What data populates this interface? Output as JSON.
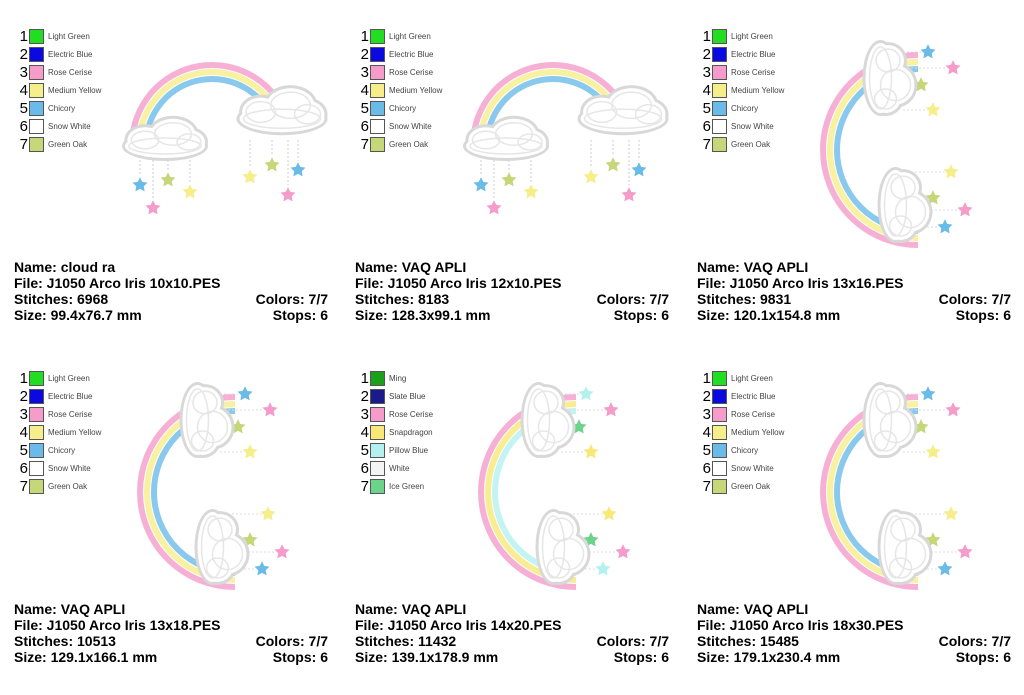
{
  "labels": {
    "name": "Name: ",
    "file": "File: ",
    "stitches": "Stitches: ",
    "size": "Size: ",
    "colors": "Colors: ",
    "stops": "Stops: "
  },
  "designs": [
    {
      "name": "cloud ra",
      "file": "J1050 Arco Iris 10x10.PES",
      "stitches": "6968",
      "size": "99.4x76.7 mm",
      "colors": "7/7",
      "stops": "6",
      "layout": "horizontal",
      "threads": [
        {
          "n": "1",
          "name": "Light Green",
          "color": "#22dd22"
        },
        {
          "n": "2",
          "name": "Electric Blue",
          "color": "#0a0ae0"
        },
        {
          "n": "3",
          "name": "Rose Cerise",
          "color": "#f59ccb"
        },
        {
          "n": "4",
          "name": "Medium Yellow",
          "color": "#f5ee8a"
        },
        {
          "n": "5",
          "name": "Chicory",
          "color": "#6bbbe8"
        },
        {
          "n": "6",
          "name": "Snow White",
          "color": "#ffffff"
        },
        {
          "n": "7",
          "name": "Green Oak",
          "color": "#c6d77a"
        }
      ]
    },
    {
      "name": "VAQ APLI",
      "file": "J1050 Arco Iris 12x10.PES",
      "stitches": "8183",
      "size": "128.3x99.1 mm",
      "colors": "7/7",
      "stops": "6",
      "layout": "horizontal",
      "threads": [
        {
          "n": "1",
          "name": "Light Green",
          "color": "#22dd22"
        },
        {
          "n": "2",
          "name": "Electric Blue",
          "color": "#0a0ae0"
        },
        {
          "n": "3",
          "name": "Rose Cerise",
          "color": "#f59ccb"
        },
        {
          "n": "4",
          "name": "Medium Yellow",
          "color": "#f5ee8a"
        },
        {
          "n": "5",
          "name": "Chicory",
          "color": "#6bbbe8"
        },
        {
          "n": "6",
          "name": "Snow White",
          "color": "#ffffff"
        },
        {
          "n": "7",
          "name": "Green Oak",
          "color": "#c6d77a"
        }
      ]
    },
    {
      "name": "VAQ APLI",
      "file": "J1050 Arco Iris 13x16.PES",
      "stitches": "9831",
      "size": "120.1x154.8 mm",
      "colors": "7/7",
      "stops": "6",
      "layout": "vertical",
      "threads": [
        {
          "n": "1",
          "name": "Light Green",
          "color": "#22dd22"
        },
        {
          "n": "2",
          "name": "Electric Blue",
          "color": "#0a0ae0"
        },
        {
          "n": "3",
          "name": "Rose Cerise",
          "color": "#f59ccb"
        },
        {
          "n": "4",
          "name": "Medium Yellow",
          "color": "#f5ee8a"
        },
        {
          "n": "5",
          "name": "Chicory",
          "color": "#6bbbe8"
        },
        {
          "n": "6",
          "name": "Snow White",
          "color": "#ffffff"
        },
        {
          "n": "7",
          "name": "Green Oak",
          "color": "#c6d77a"
        }
      ]
    },
    {
      "name": "VAQ APLI",
      "file": "J1050 Arco Iris 13x18.PES",
      "stitches": "10513",
      "size": "129.1x166.1 mm",
      "colors": "7/7",
      "stops": "6",
      "layout": "vertical",
      "threads": [
        {
          "n": "1",
          "name": "Light Green",
          "color": "#22dd22"
        },
        {
          "n": "2",
          "name": "Electric Blue",
          "color": "#0a0ae0"
        },
        {
          "n": "3",
          "name": "Rose Cerise",
          "color": "#f59ccb"
        },
        {
          "n": "4",
          "name": "Medium Yellow",
          "color": "#f5ee8a"
        },
        {
          "n": "5",
          "name": "Chicory",
          "color": "#6bbbe8"
        },
        {
          "n": "6",
          "name": "Snow White",
          "color": "#ffffff"
        },
        {
          "n": "7",
          "name": "Green Oak",
          "color": "#c6d77a"
        }
      ]
    },
    {
      "name": "VAQ APLI",
      "file": "J1050 Arco Iris 14x20.PES",
      "stitches": "11432",
      "size": "139.1x178.9 mm",
      "colors": "7/7",
      "stops": "6",
      "layout": "vertical",
      "threads": [
        {
          "n": "1",
          "name": "Ming",
          "color": "#1aa01a"
        },
        {
          "n": "2",
          "name": "Slate Blue",
          "color": "#1a1a8c"
        },
        {
          "n": "3",
          "name": "Rose Cerise",
          "color": "#f59ccb"
        },
        {
          "n": "4",
          "name": "Snapdragon",
          "color": "#f8e878"
        },
        {
          "n": "5",
          "name": "Pillow Blue",
          "color": "#b5f0f0"
        },
        {
          "n": "6",
          "name": "White",
          "color": "#f4f4f4"
        },
        {
          "n": "7",
          "name": "Ice Green",
          "color": "#6cd48a"
        }
      ]
    },
    {
      "name": "VAQ APLI",
      "file": "J1050 Arco Iris 18x30.PES",
      "stitches": "15485",
      "size": "179.1x230.4 mm",
      "colors": "7/7",
      "stops": "6",
      "layout": "vertical",
      "threads": [
        {
          "n": "1",
          "name": "Light Green",
          "color": "#22dd22"
        },
        {
          "n": "2",
          "name": "Electric Blue",
          "color": "#0a0ae0"
        },
        {
          "n": "3",
          "name": "Rose Cerise",
          "color": "#f59ccb"
        },
        {
          "n": "4",
          "name": "Medium Yellow",
          "color": "#f5ee8a"
        },
        {
          "n": "5",
          "name": "Chicory",
          "color": "#6bbbe8"
        },
        {
          "n": "6",
          "name": "Snow White",
          "color": "#ffffff"
        },
        {
          "n": "7",
          "name": "Green Oak",
          "color": "#c6d77a"
        }
      ]
    }
  ]
}
